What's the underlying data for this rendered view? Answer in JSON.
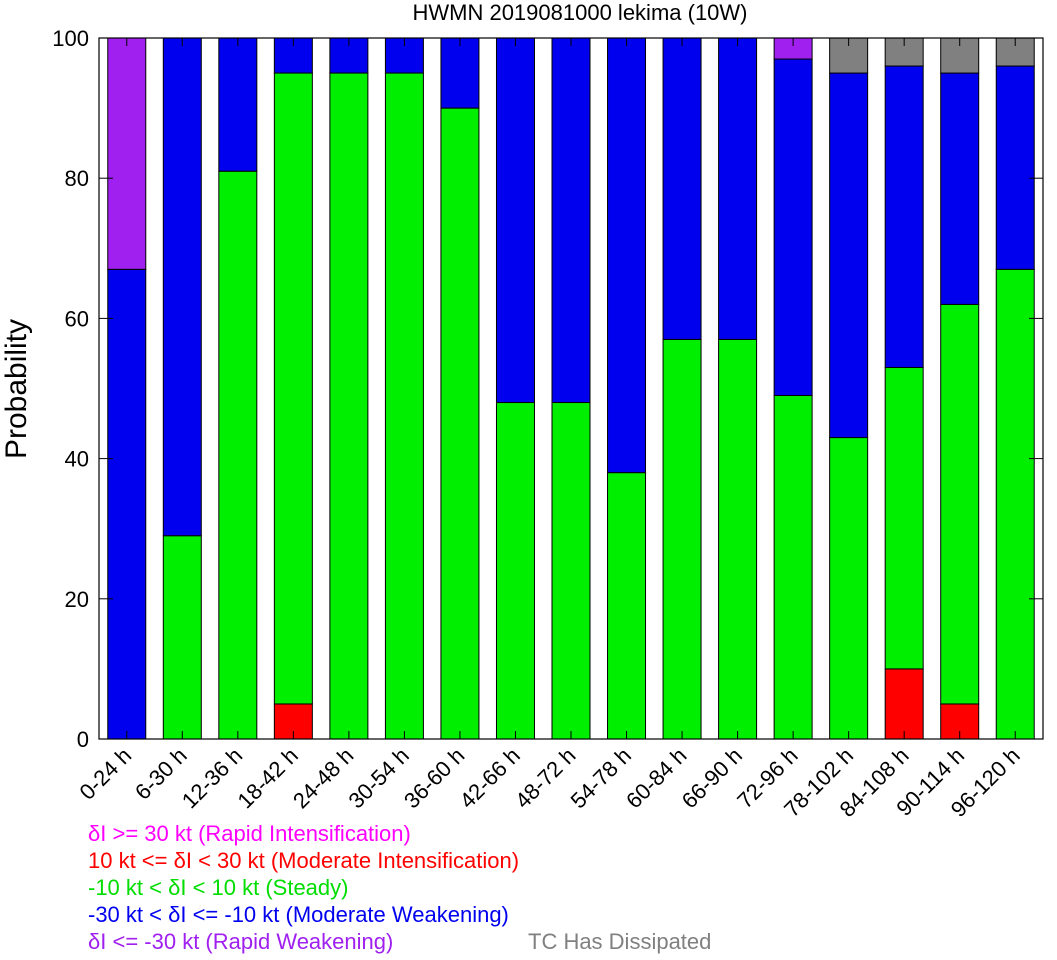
{
  "chart_data": {
    "type": "bar",
    "stacked": true,
    "title": "HWMN 2019081000 lekima (10W)",
    "xlabel": "",
    "ylabel": "Probability",
    "ylim": [
      0,
      100
    ],
    "yticks": [
      0,
      20,
      40,
      60,
      80,
      100
    ],
    "grid": false,
    "categories": [
      "0-24 h",
      "6-30 h",
      "12-36 h",
      "18-42 h",
      "24-48 h",
      "30-54 h",
      "36-60 h",
      "42-66 h",
      "48-72 h",
      "54-78 h",
      "60-84 h",
      "66-90 h",
      "72-96 h",
      "78-102 h",
      "84-108 h",
      "90-114 h",
      "96-120 h"
    ],
    "series": [
      {
        "key": "mod_int",
        "color": "#ff0000",
        "values": [
          0,
          0,
          0,
          5,
          0,
          0,
          0,
          0,
          0,
          0,
          0,
          0,
          0,
          0,
          10,
          5,
          0
        ]
      },
      {
        "key": "steady",
        "color": "#00ee00",
        "values": [
          0,
          29,
          81,
          90,
          95,
          95,
          90,
          48,
          48,
          38,
          57,
          57,
          49,
          43,
          43,
          57,
          67
        ]
      },
      {
        "key": "mod_weak",
        "color": "#0000ee",
        "values": [
          67,
          71,
          19,
          5,
          5,
          5,
          10,
          52,
          52,
          62,
          43,
          43,
          48,
          52,
          43,
          33,
          29
        ]
      },
      {
        "key": "rapid_weak",
        "color": "#a020f0",
        "values": [
          33,
          0,
          0,
          0,
          0,
          0,
          0,
          0,
          0,
          0,
          0,
          0,
          3,
          0,
          0,
          0,
          0
        ]
      },
      {
        "key": "dissipated",
        "color": "#808080",
        "values": [
          0,
          0,
          0,
          0,
          0,
          0,
          0,
          0,
          0,
          0,
          0,
          0,
          0,
          5,
          4,
          5,
          4
        ]
      }
    ],
    "legend": [
      {
        "text": "δI >= 30 kt (Rapid Intensification)",
        "color": "#ff00ff"
      },
      {
        "text": "10 kt <= δI < 30 kt (Moderate Intensification)",
        "color": "#ff0000"
      },
      {
        "text": "-10 kt < δI < 10 kt (Steady)",
        "color": "#00dd00"
      },
      {
        "text": "-30 kt < δI <= -10 kt (Moderate Weakening)",
        "color": "#0000ee"
      },
      {
        "text": "δI <= -30 kt (Rapid Weakening)",
        "color": "#a020f0"
      },
      {
        "text": "TC Has Dissipated",
        "color": "#808080"
      }
    ],
    "legend_placement": "bottom"
  }
}
